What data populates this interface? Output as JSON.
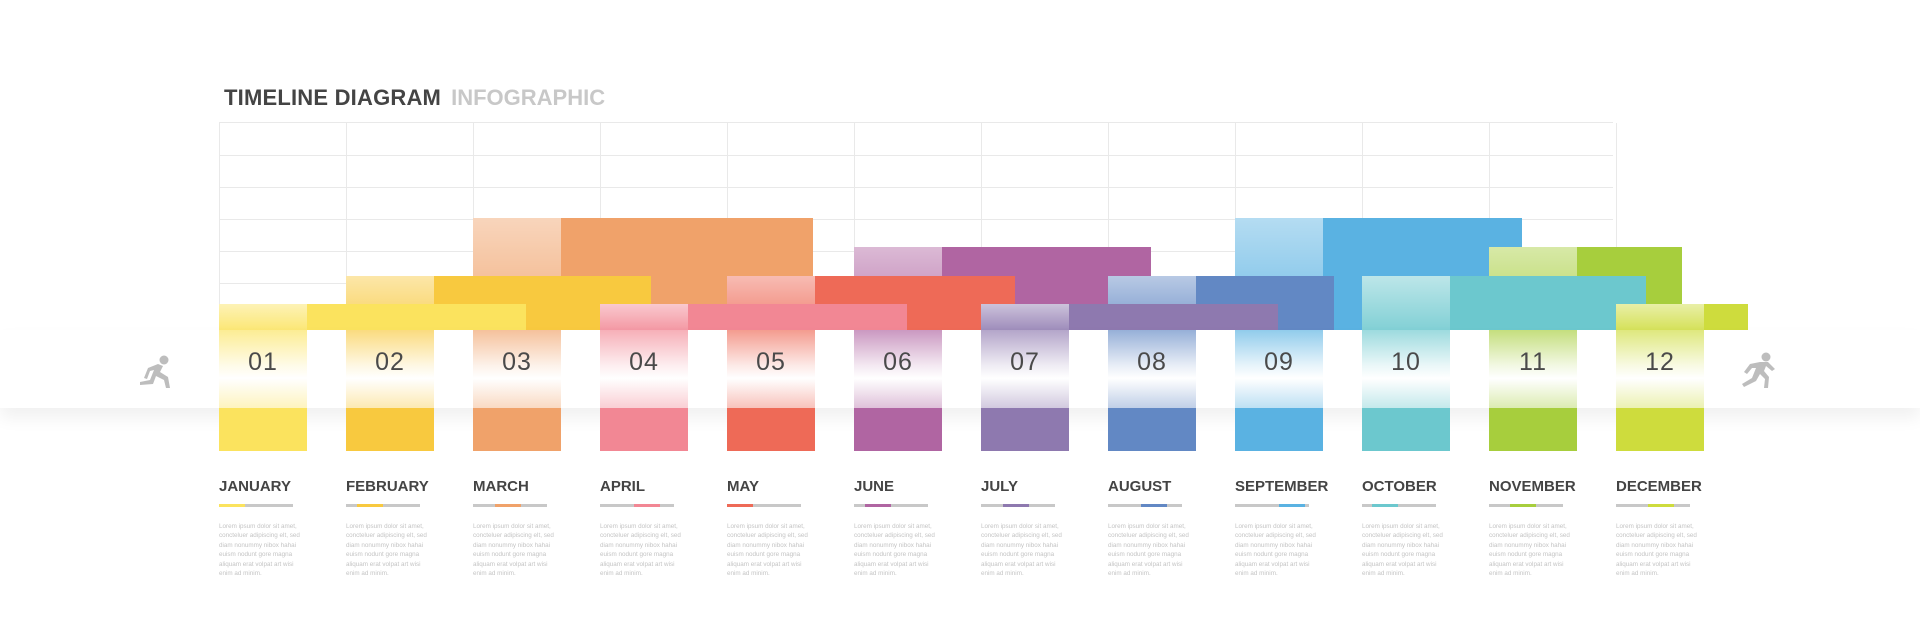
{
  "title": {
    "main": "TIMELINE DIAGRAM",
    "sub": "INFOGRAPHIC"
  },
  "colors": {
    "jan": "#FBE35E",
    "feb": "#F8C93F",
    "mar": "#F0A26A",
    "apr": "#F28794",
    "may": "#EE6A57",
    "jun": "#B065A2",
    "jul": "#8E79AF",
    "aug": "#6288C4",
    "sep": "#5AB2E2",
    "oct": "#6CC8CE",
    "nov": "#A7CE3D",
    "dec": "#CEDC3D",
    "neutral": "#c8c8c8"
  },
  "icons": {
    "start": "runner-start-icon",
    "finish": "runner-finish-icon"
  },
  "months": [
    {
      "num": "01",
      "name": "JANUARY",
      "desc": "Lorem ipsum dolor sit amet, concteluer adipiscing elt, sed diam nonummy nibox hahai euism nodunt gore magna aliquam erat volpat art wisi enim ad minim."
    },
    {
      "num": "02",
      "name": "FEBRUARY",
      "desc": "Lorem ipsum dolor sit amet, concteluer adipiscing elt, sed diam nonummy nibox hahai euism nodunt gore magna aliquam erat volpat art wisi enim ad minim."
    },
    {
      "num": "03",
      "name": "MARCH",
      "desc": "Lorem ipsum dolor sit amet, concteluer adipiscing elt, sed diam nonummy nibox hahai euism nodunt gore magna aliquam erat volpat art wisi enim ad minim."
    },
    {
      "num": "04",
      "name": "APRIL",
      "desc": "Lorem ipsum dolor sit amet, concteluer adipiscing elt, sed diam nonummy nibox hahai euism nodunt gore magna aliquam erat volpat art wisi enim ad minim."
    },
    {
      "num": "05",
      "name": "MAY",
      "desc": "Lorem ipsum dolor sit amet, concteluer adipiscing elt, sed diam nonummy nibox hahai euism nodunt gore magna aliquam erat volpat art wisi enim ad minim."
    },
    {
      "num": "06",
      "name": "JUNE",
      "desc": "Lorem ipsum dolor sit amet, concteluer adipiscing elt, sed diam nonummy nibox hahai euism nodunt gore magna aliquam erat volpat art wisi enim ad minim."
    },
    {
      "num": "07",
      "name": "JULY",
      "desc": "Lorem ipsum dolor sit amet, concteluer adipiscing elt, sed diam nonummy nibox hahai euism nodunt gore magna aliquam erat volpat art wisi enim ad minim."
    },
    {
      "num": "08",
      "name": "AUGUST",
      "desc": "Lorem ipsum dolor sit amet, concteluer adipiscing elt, sed diam nonummy nibox hahai euism nodunt gore magna aliquam erat volpat art wisi enim ad minim."
    },
    {
      "num": "09",
      "name": "SEPTEMBER",
      "desc": "Lorem ipsum dolor sit amet, concteluer adipiscing elt, sed diam nonummy nibox hahai euism nodunt gore magna aliquam erat volpat art wisi enim ad minim."
    },
    {
      "num": "10",
      "name": "OCTOBER",
      "desc": "Lorem ipsum dolor sit amet, concteluer adipiscing elt, sed diam nonummy nibox hahai euism nodunt gore magna aliquam erat volpat art wisi enim ad minim."
    },
    {
      "num": "11",
      "name": "NOVEMBER",
      "desc": "Lorem ipsum dolor sit amet, concteluer adipiscing elt, sed diam nonummy nibox hahai euism nodunt gore magna aliquam erat volpat art wisi enim ad minim."
    },
    {
      "num": "12",
      "name": "DECEMBER",
      "desc": "Lorem ipsum dolor sit amet, concteluer adipiscing elt, sed diam nonummy nibox hahai euism nodunt gore magna aliquam erat volpat art wisi enim ad minim."
    }
  ]
}
